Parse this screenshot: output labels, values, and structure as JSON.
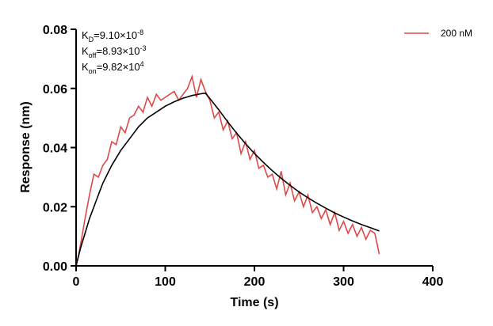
{
  "chart_data": {
    "type": "line",
    "title": "",
    "xlabel": "Time (s)",
    "ylabel": "Response (nm)",
    "xlim": [
      0,
      400
    ],
    "ylim": [
      0,
      0.08
    ],
    "x_ticks": [
      0,
      100,
      200,
      300,
      400
    ],
    "y_ticks": [
      0.0,
      0.02,
      0.04,
      0.06,
      0.08
    ],
    "x_tick_labels": [
      "0",
      "100",
      "200",
      "300",
      "400"
    ],
    "y_tick_labels": [
      "0.00",
      "0.02",
      "0.04",
      "0.06",
      "0.08"
    ],
    "grid": false,
    "legend_position": "top-right",
    "annotations": [
      {
        "sym": "K",
        "sub": "D",
        "text": "=9.10×10",
        "sup": "-8"
      },
      {
        "sym": "K",
        "sub": "off",
        "text": "=8.93×10",
        "sup": "-3"
      },
      {
        "sym": "K",
        "sub": "on",
        "text": "=9.82×10",
        "sup": "4"
      }
    ],
    "series": [
      {
        "name": "200 nM",
        "color": "#e04848",
        "x": [
          0,
          3,
          6,
          10,
          15,
          20,
          25,
          30,
          35,
          40,
          45,
          50,
          55,
          60,
          65,
          70,
          75,
          80,
          85,
          90,
          95,
          100,
          105,
          110,
          115,
          120,
          125,
          130,
          135,
          140,
          145,
          150,
          155,
          160,
          165,
          170,
          175,
          180,
          185,
          190,
          195,
          200,
          205,
          210,
          215,
          220,
          225,
          230,
          235,
          240,
          245,
          250,
          255,
          260,
          265,
          270,
          275,
          280,
          285,
          290,
          295,
          300,
          305,
          310,
          315,
          320,
          325,
          330,
          335,
          340
        ],
        "y": [
          0.0,
          0.004,
          0.009,
          0.016,
          0.024,
          0.031,
          0.03,
          0.034,
          0.036,
          0.042,
          0.041,
          0.047,
          0.045,
          0.05,
          0.051,
          0.054,
          0.052,
          0.057,
          0.054,
          0.058,
          0.056,
          0.057,
          0.058,
          0.059,
          0.056,
          0.058,
          0.06,
          0.064,
          0.057,
          0.063,
          0.059,
          0.056,
          0.05,
          0.052,
          0.046,
          0.049,
          0.043,
          0.045,
          0.038,
          0.042,
          0.036,
          0.039,
          0.033,
          0.034,
          0.03,
          0.031,
          0.026,
          0.032,
          0.024,
          0.028,
          0.022,
          0.025,
          0.02,
          0.024,
          0.018,
          0.02,
          0.016,
          0.019,
          0.014,
          0.018,
          0.012,
          0.015,
          0.011,
          0.014,
          0.01,
          0.013,
          0.009,
          0.012,
          0.011,
          0.004
        ]
      }
    ],
    "fit": {
      "name": "fit",
      "color": "#000000",
      "x": [
        0,
        5,
        10,
        15,
        20,
        25,
        30,
        40,
        50,
        60,
        70,
        80,
        90,
        100,
        110,
        120,
        130,
        140,
        145,
        150,
        160,
        170,
        180,
        190,
        200,
        210,
        220,
        230,
        240,
        250,
        260,
        270,
        280,
        290,
        300,
        310,
        320,
        330,
        340
      ],
      "y": [
        0.0,
        0.006,
        0.011,
        0.016,
        0.02,
        0.024,
        0.028,
        0.034,
        0.039,
        0.043,
        0.047,
        0.05,
        0.052,
        0.054,
        0.0555,
        0.0567,
        0.0576,
        0.0582,
        0.0584,
        0.0566,
        0.0528,
        0.0487,
        0.0449,
        0.0413,
        0.038,
        0.035,
        0.0322,
        0.0296,
        0.0272,
        0.025,
        0.023,
        0.0212,
        0.0195,
        0.0179,
        0.0165,
        0.0152,
        0.014,
        0.0129,
        0.0118
      ]
    }
  }
}
